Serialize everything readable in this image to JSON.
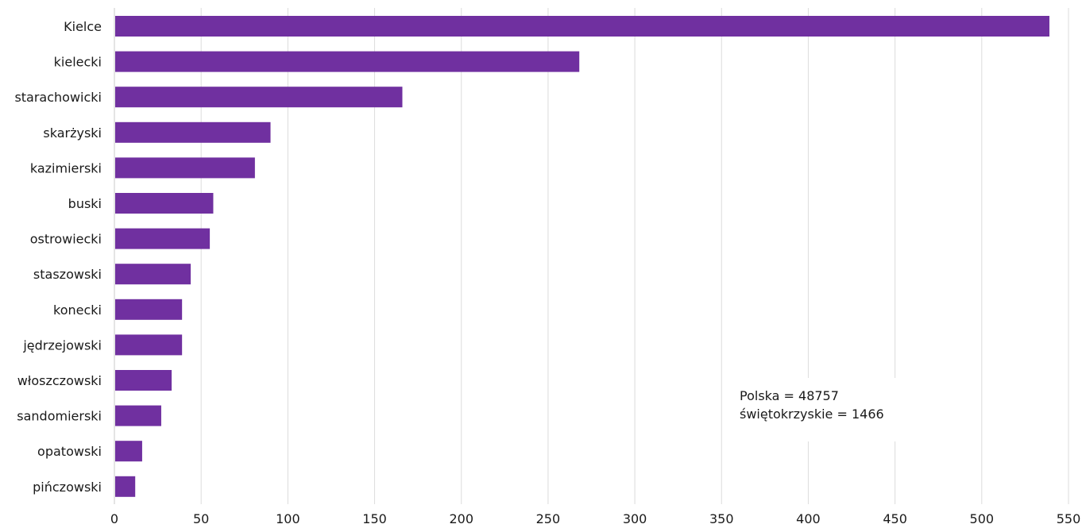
{
  "chart_data": {
    "type": "bar",
    "orientation": "horizontal",
    "categories": [
      "Kielce",
      "kielecki",
      "starachowicki",
      "skarżyski",
      "kazimierski",
      "buski",
      "ostrowiecki",
      "staszowski",
      "konecki",
      "jędrzejowski",
      "włoszczowski",
      "sandomierski",
      "opatowski",
      "pińczowski"
    ],
    "values": [
      539,
      268,
      166,
      90,
      81,
      57,
      55,
      44,
      39,
      39,
      33,
      27,
      16,
      12
    ],
    "xlim": [
      0,
      550
    ],
    "xticks": [
      "0",
      "50",
      "100",
      "150",
      "200",
      "250",
      "300",
      "350",
      "400",
      "450",
      "500",
      "550"
    ],
    "grid": "vertical",
    "bar_color": "#7030a0",
    "annotation": {
      "line1": "Polska = 48757",
      "line2": "świętokrzyskie = 1466"
    }
  }
}
